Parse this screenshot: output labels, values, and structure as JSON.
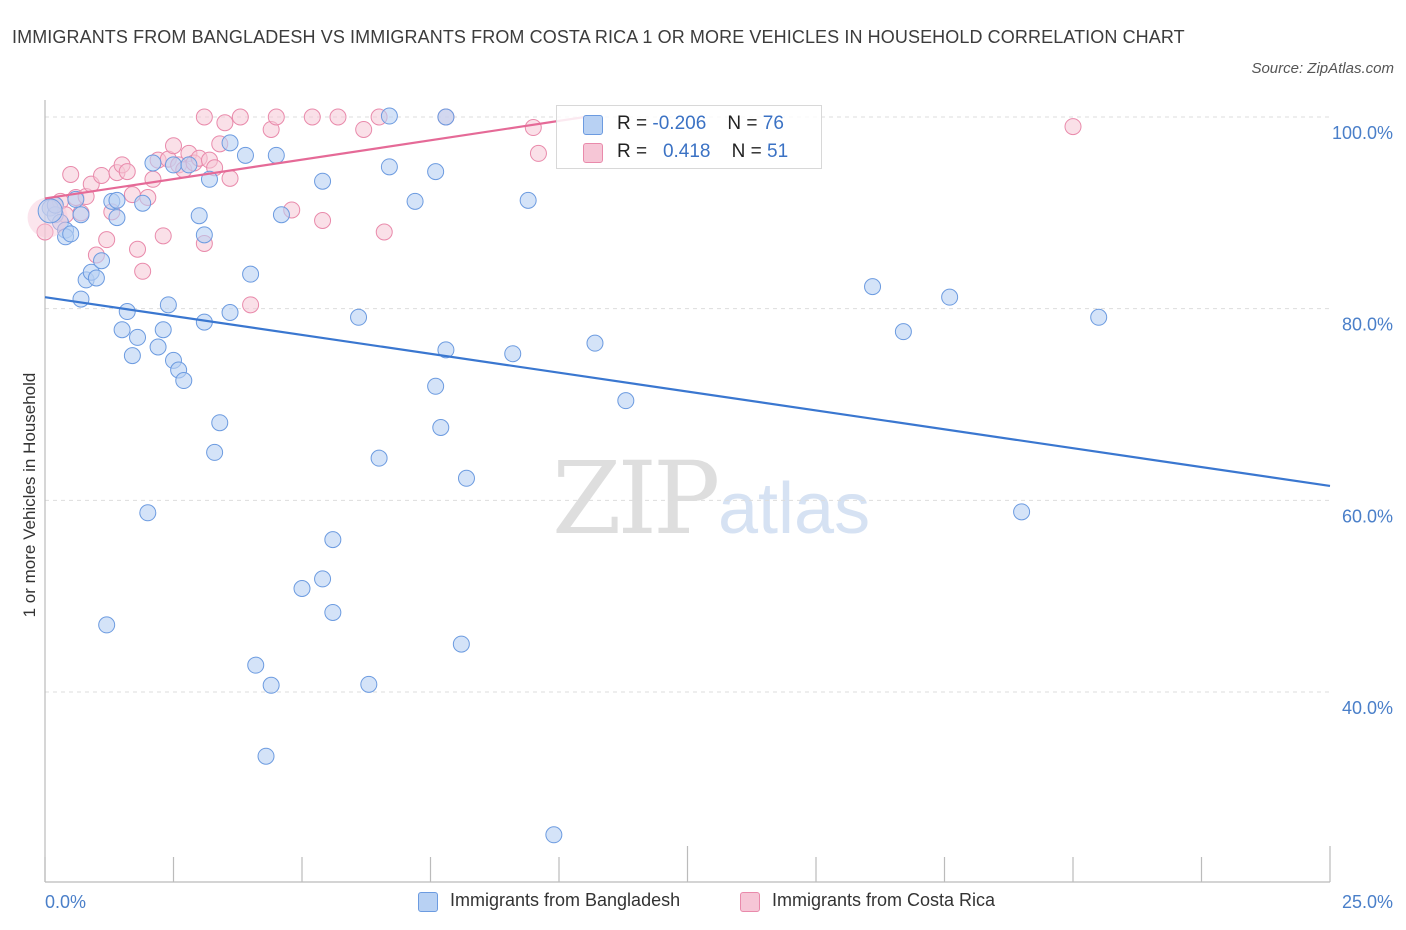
{
  "title": "IMMIGRANTS FROM BANGLADESH VS IMMIGRANTS FROM COSTA RICA 1 OR MORE VEHICLES IN HOUSEHOLD CORRELATION CHART",
  "source": "Source: ZipAtlas.com",
  "watermark": {
    "zip": "ZIP",
    "atlas": "atlas"
  },
  "colors": {
    "blue_fill": "#b8d1f3",
    "blue_stroke": "#6c9be0",
    "blue_line": "#3a77d0",
    "pink_fill": "#f6c6d6",
    "pink_stroke": "#e98aab",
    "pink_line": "#e56a97",
    "tick_text": "#4a7fc9",
    "grid": "#dddddd"
  },
  "legend_top": {
    "rows": [
      {
        "r_label": "R =",
        "r_value": "-0.206",
        "n_label": "N =",
        "n_value": "76"
      },
      {
        "r_label": "R =",
        "r_value": "0.418",
        "n_label": "N =",
        "n_value": "51"
      }
    ]
  },
  "legend_bottom": {
    "items": [
      "Immigrants from Bangladesh",
      "Immigrants from Costa Rica"
    ]
  },
  "chart_data": {
    "type": "scatter",
    "ylabel": "1 or more Vehicles in Household",
    "xlabel": "",
    "xlim": [
      0,
      25
    ],
    "ylim": [
      20,
      102
    ],
    "x_tick_labels": [
      "0.0%",
      "25.0%"
    ],
    "y_ticks": [
      40,
      60,
      80,
      100
    ],
    "y_tick_labels": [
      "40.0%",
      "60.0%",
      "80.0%",
      "100.0%"
    ],
    "grid": true,
    "legend": "bottom",
    "series": [
      {
        "name": "Immigrants from Bangladesh",
        "r": -0.206,
        "n": 76,
        "trend": {
          "x": [
            0,
            25
          ],
          "y": [
            81.2,
            61.5
          ]
        },
        "points": [
          [
            0.1,
            90.5
          ],
          [
            0.2,
            89.8
          ],
          [
            0.3,
            89.0
          ],
          [
            0.4,
            88.2
          ],
          [
            0.4,
            87.5
          ],
          [
            0.5,
            87.8
          ],
          [
            0.6,
            91.4
          ],
          [
            0.7,
            89.8
          ],
          [
            0.7,
            81.0
          ],
          [
            0.8,
            83.0
          ],
          [
            0.9,
            83.8
          ],
          [
            1.0,
            83.2
          ],
          [
            1.1,
            85.0
          ],
          [
            1.3,
            91.2
          ],
          [
            1.4,
            89.5
          ],
          [
            1.5,
            77.8
          ],
          [
            1.6,
            79.7
          ],
          [
            1.7,
            75.1
          ],
          [
            1.8,
            77.0
          ],
          [
            1.9,
            91.0
          ],
          [
            2.1,
            95.2
          ],
          [
            2.2,
            76.0
          ],
          [
            2.3,
            77.8
          ],
          [
            2.4,
            80.4
          ],
          [
            2.5,
            95.0
          ],
          [
            2.5,
            74.6
          ],
          [
            2.6,
            73.6
          ],
          [
            2.7,
            72.5
          ],
          [
            2.8,
            95.0
          ],
          [
            3.0,
            89.7
          ],
          [
            3.1,
            87.7
          ],
          [
            3.1,
            78.6
          ],
          [
            3.2,
            93.5
          ],
          [
            3.3,
            65.0
          ],
          [
            3.4,
            68.1
          ],
          [
            3.6,
            97.3
          ],
          [
            3.6,
            79.6
          ],
          [
            3.9,
            96.0
          ],
          [
            4.0,
            83.6
          ],
          [
            4.5,
            96.0
          ],
          [
            4.6,
            89.8
          ],
          [
            5.4,
            93.3
          ],
          [
            6.1,
            79.1
          ],
          [
            6.5,
            64.4
          ],
          [
            6.7,
            100.1
          ],
          [
            6.7,
            94.8
          ],
          [
            7.2,
            91.2
          ],
          [
            7.6,
            94.3
          ],
          [
            7.6,
            71.9
          ],
          [
            7.7,
            67.6
          ],
          [
            7.8,
            100.0
          ],
          [
            7.8,
            75.7
          ],
          [
            8.2,
            62.3
          ],
          [
            9.1,
            75.3
          ],
          [
            9.4,
            91.3
          ],
          [
            10.7,
            76.4
          ],
          [
            11.3,
            70.4
          ],
          [
            16.1,
            82.3
          ],
          [
            16.7,
            77.6
          ],
          [
            17.6,
            81.2
          ],
          [
            19.0,
            58.8
          ],
          [
            20.5,
            79.1
          ],
          [
            2.0,
            58.7
          ],
          [
            1.2,
            47.0
          ],
          [
            4.1,
            42.8
          ],
          [
            4.4,
            40.7
          ],
          [
            4.3,
            33.3
          ],
          [
            5.0,
            50.8
          ],
          [
            5.4,
            51.8
          ],
          [
            5.6,
            48.3
          ],
          [
            5.6,
            55.9
          ],
          [
            6.3,
            40.8
          ],
          [
            8.1,
            45.0
          ],
          [
            9.9,
            25.1
          ],
          [
            0.2,
            90.8
          ],
          [
            1.4,
            91.3
          ]
        ]
      },
      {
        "name": "Immigrants from Costa Rica",
        "r": 0.418,
        "n": 51,
        "trend": {
          "x": [
            0,
            10.5
          ],
          "y": [
            91.5,
            100.0
          ]
        },
        "points": [
          [
            0.0,
            88.0
          ],
          [
            0.2,
            90.8
          ],
          [
            0.3,
            91.2
          ],
          [
            0.4,
            89.8
          ],
          [
            0.5,
            94.0
          ],
          [
            0.6,
            91.6
          ],
          [
            0.7,
            90.0
          ],
          [
            0.8,
            91.7
          ],
          [
            0.9,
            93.0
          ],
          [
            1.0,
            85.6
          ],
          [
            1.1,
            93.9
          ],
          [
            1.2,
            87.2
          ],
          [
            1.3,
            90.1
          ],
          [
            1.4,
            94.2
          ],
          [
            1.5,
            95.0
          ],
          [
            1.6,
            94.3
          ],
          [
            1.7,
            91.9
          ],
          [
            1.8,
            86.2
          ],
          [
            1.9,
            83.9
          ],
          [
            2.0,
            91.6
          ],
          [
            2.1,
            93.5
          ],
          [
            2.2,
            95.5
          ],
          [
            2.3,
            87.6
          ],
          [
            2.4,
            95.6
          ],
          [
            2.5,
            97.0
          ],
          [
            2.6,
            95.0
          ],
          [
            2.7,
            94.5
          ],
          [
            2.8,
            96.2
          ],
          [
            2.9,
            95.2
          ],
          [
            3.0,
            95.7
          ],
          [
            3.1,
            100.0
          ],
          [
            3.1,
            86.8
          ],
          [
            3.2,
            95.5
          ],
          [
            3.3,
            94.7
          ],
          [
            3.4,
            97.2
          ],
          [
            3.5,
            99.4
          ],
          [
            3.6,
            93.6
          ],
          [
            3.8,
            100.0
          ],
          [
            4.0,
            80.4
          ],
          [
            4.4,
            98.7
          ],
          [
            4.5,
            100.0
          ],
          [
            4.8,
            90.3
          ],
          [
            5.2,
            100.0
          ],
          [
            5.4,
            89.2
          ],
          [
            5.7,
            100.0
          ],
          [
            6.2,
            98.7
          ],
          [
            6.5,
            100.0
          ],
          [
            6.6,
            88.0
          ],
          [
            7.8,
            100.0
          ],
          [
            9.5,
            98.9
          ],
          [
            9.6,
            96.2
          ]
        ],
        "extra_points": [
          [
            20.0,
            99.0
          ]
        ]
      }
    ]
  }
}
